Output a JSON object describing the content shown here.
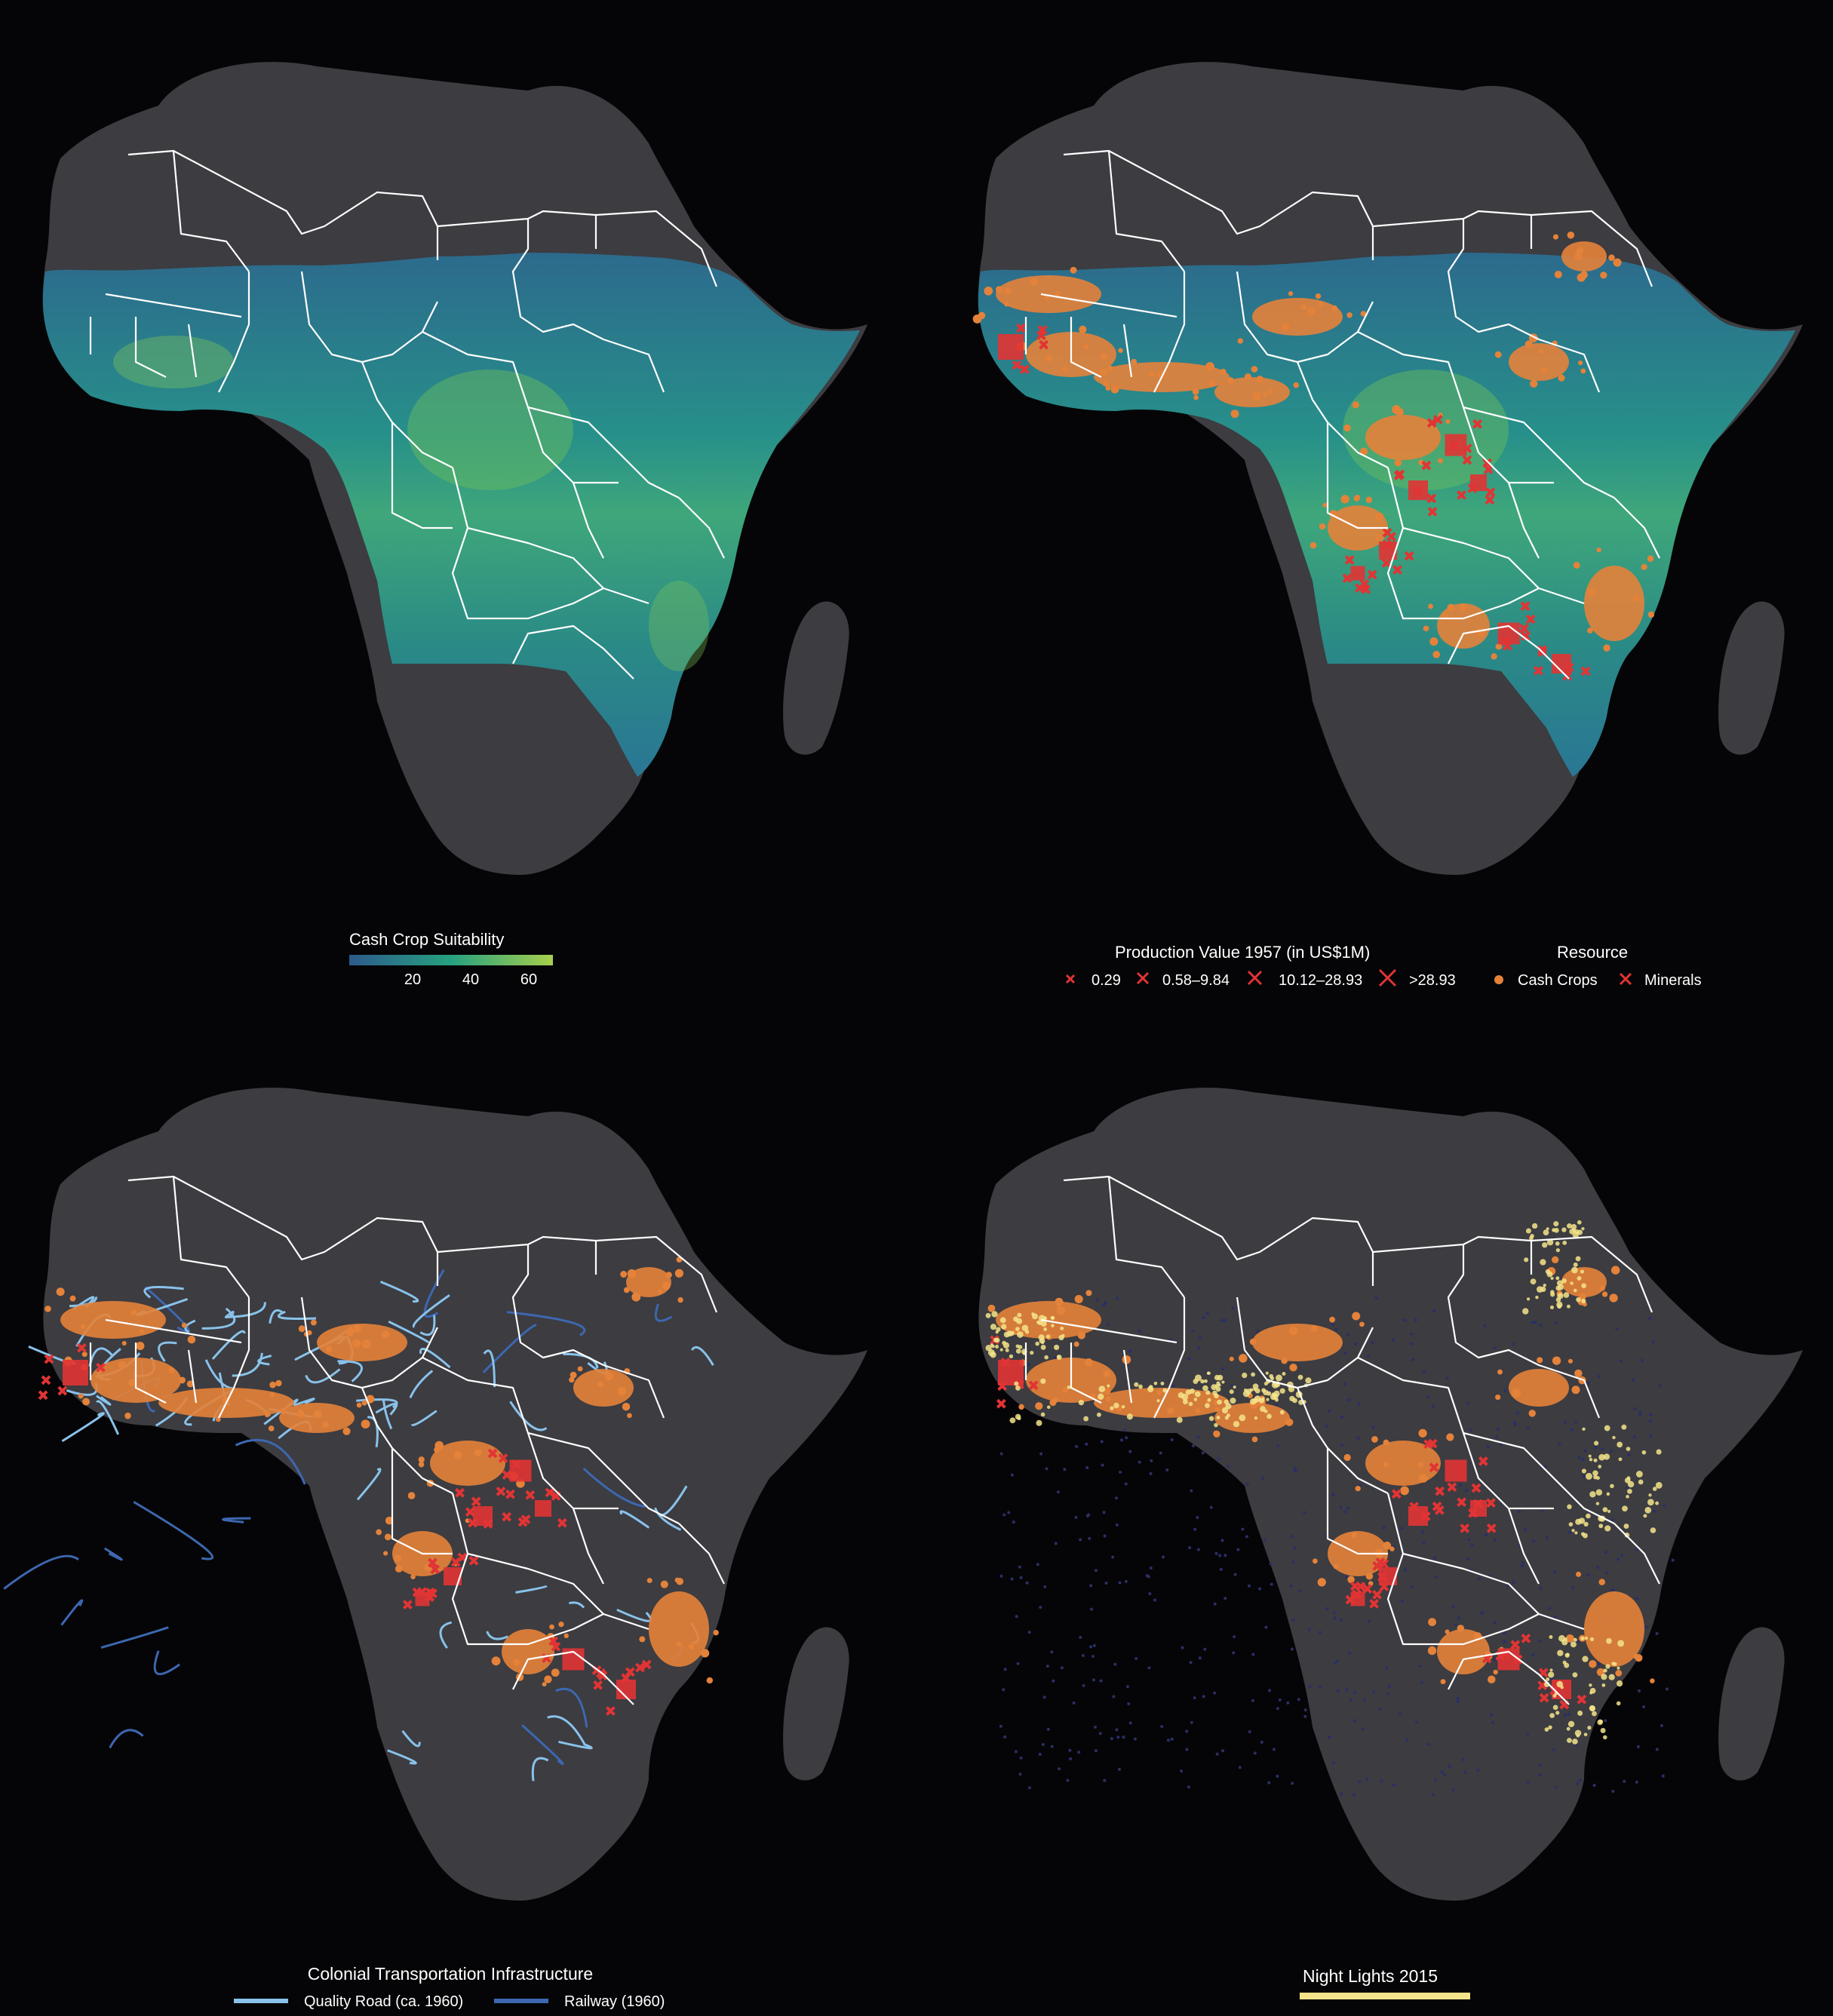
{
  "colors": {
    "background": "#050507",
    "land": "#3c3c41",
    "borders": "#ffffff",
    "suitability_low": "#2c5a8c",
    "suitability_mid": "#26a17f",
    "suitability_high": "#a7cf4d",
    "cash_crops": "#e4823a",
    "minerals": "#e23434",
    "quality_road": "#89c2ea",
    "railway": "#3d67b0",
    "night_lights": "#f4e48a"
  },
  "panels": [
    {
      "id": "cash-crop-suitability",
      "legend_title": "Cash Crop Suitability",
      "colorbar_ticks": [
        "20",
        "40",
        "60"
      ]
    },
    {
      "id": "production-value",
      "legend_title_size": "Production Value 1957 (in US$1M)",
      "size_classes": [
        "0.29",
        "0.58–9.84",
        "10.12–28.93",
        ">28.93"
      ],
      "legend_title_resource": "Resource",
      "resources": [
        "Cash Crops",
        "Minerals"
      ]
    },
    {
      "id": "transport-infrastructure",
      "legend_title": "Colonial Transportation Infrastructure",
      "items": [
        "Quality Road (ca. 1960)",
        "Railway (1960)"
      ]
    },
    {
      "id": "night-lights",
      "legend_title": "Night Lights 2015"
    }
  ]
}
